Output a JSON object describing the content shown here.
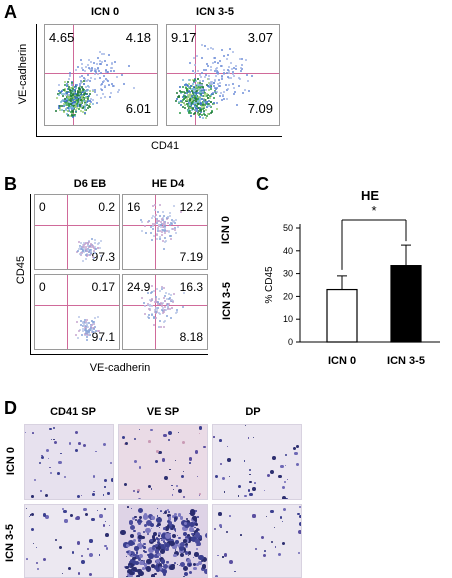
{
  "panel_a": {
    "letter": "A",
    "plots": [
      {
        "title": "ICN 0",
        "q_ul": "4.65",
        "q_ur": "4.18",
        "q_lr": "6.01"
      },
      {
        "title": "ICN 3-5",
        "q_ul": "9.17",
        "q_ur": "3.07",
        "q_lr": "7.09"
      }
    ],
    "ylabel": "VE-cadherin",
    "xlabel": "CD41"
  },
  "panel_b": {
    "letter": "B",
    "col_titles": [
      "D6 EB",
      "HE D4"
    ],
    "row_labels": [
      "ICN 0",
      "ICN 3-5"
    ],
    "plots": [
      {
        "q_ul": "0",
        "q_ur": "0.2",
        "q_lr": "97.3"
      },
      {
        "q_ul": "16",
        "q_ur": "12.2",
        "q_lr": "7.19"
      },
      {
        "q_ul": "0",
        "q_ur": "0.17",
        "q_lr": "97.1"
      },
      {
        "q_ul": "24.9",
        "q_ur": "16.3",
        "q_lr": "8.18"
      }
    ],
    "ylabel": "CD45",
    "xlabel": "VE-cadherin"
  },
  "panel_c": {
    "letter": "C",
    "significance": "*"
  },
  "chart_data": {
    "type": "bar",
    "title": "HE",
    "categories": [
      "ICN 0",
      "ICN 3-5"
    ],
    "values": [
      23,
      33.5
    ],
    "errors": [
      6,
      9
    ],
    "ylabel": "% CD45",
    "ylim": [
      0,
      50
    ],
    "yticks": [
      "0",
      "10",
      "20",
      "30",
      "40",
      "50"
    ],
    "bar_colors": [
      "#ffffff",
      "#000000"
    ]
  },
  "panel_d": {
    "letter": "D",
    "col_titles": [
      "CD41 SP",
      "VE SP",
      "DP"
    ],
    "row_labels": [
      "ICN 0",
      "ICN 3-5"
    ]
  }
}
